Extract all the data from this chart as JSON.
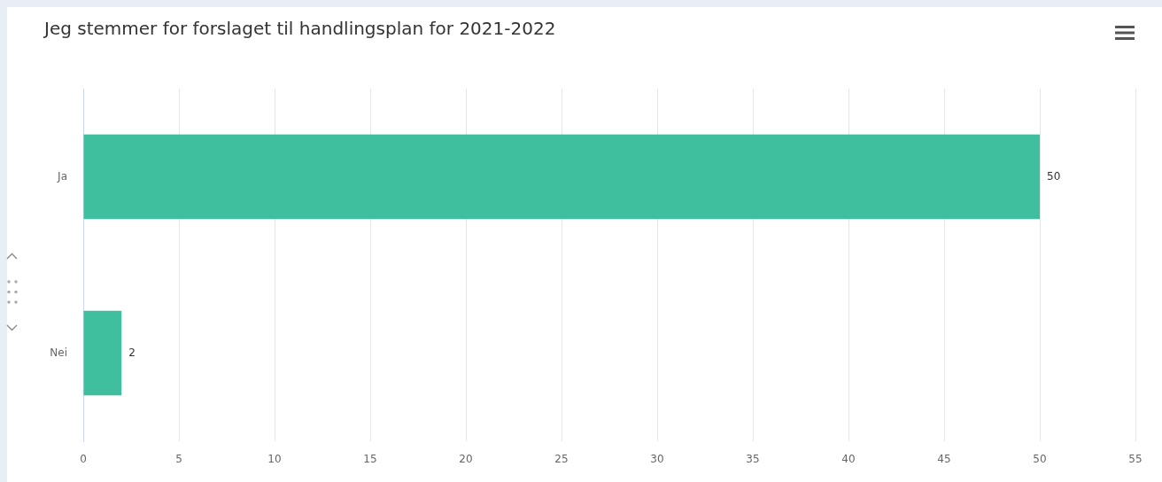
{
  "chart_data": {
    "type": "bar",
    "orientation": "horizontal",
    "title": "Jeg stemmer for forslaget til handlingsplan for 2021-2022",
    "categories": [
      "Ja",
      "Nei"
    ],
    "values": [
      50,
      2
    ],
    "color": "#3fbf9e",
    "xlim": [
      0,
      55
    ],
    "xticks": [
      0,
      5,
      10,
      15,
      20,
      25,
      30,
      35,
      40,
      45,
      50,
      55
    ],
    "grid": "x",
    "data_labels": true
  }
}
